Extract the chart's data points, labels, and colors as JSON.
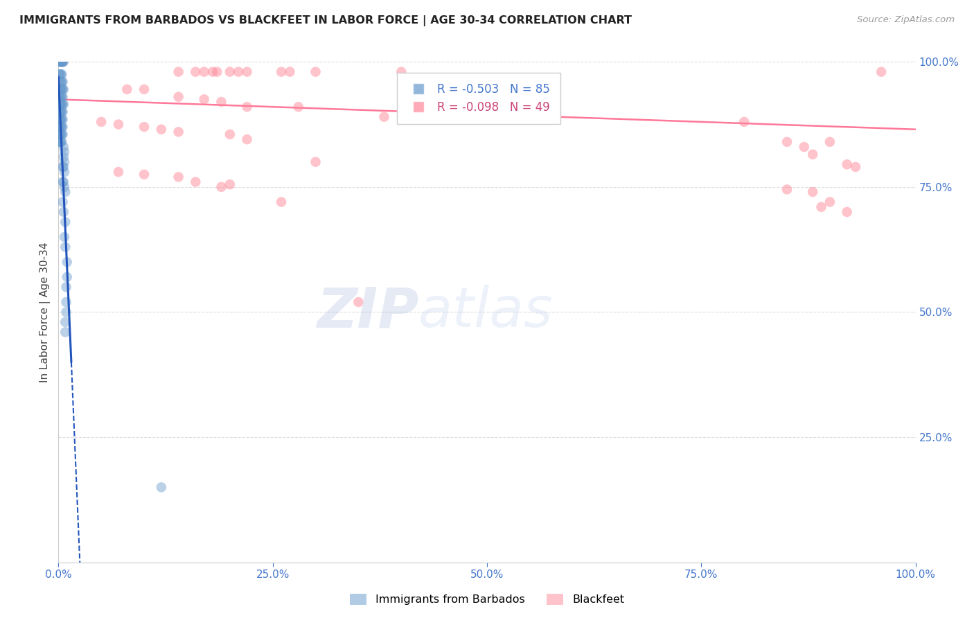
{
  "title": "IMMIGRANTS FROM BARBADOS VS BLACKFEET IN LABOR FORCE | AGE 30-34 CORRELATION CHART",
  "source": "Source: ZipAtlas.com",
  "ylabel": "In Labor Force | Age 30-34",
  "barbados_color": "#6699CC",
  "blackfeet_color": "#FF8899",
  "barbados_R": -0.503,
  "barbados_N": 85,
  "blackfeet_R": -0.098,
  "blackfeet_N": 49,
  "legend_label_barbados": "Immigrants from Barbados",
  "legend_label_blackfeet": "Blackfeet",
  "watermark_zip": "ZIP",
  "watermark_atlas": "atlas",
  "blue_line_solid": [
    [
      0.0,
      0.97
    ],
    [
      0.015,
      0.4
    ]
  ],
  "blue_line_dashed": [
    [
      0.015,
      0.4
    ],
    [
      0.025,
      0.0
    ]
  ],
  "pink_line": [
    [
      0.0,
      0.925
    ],
    [
      1.0,
      0.865
    ]
  ],
  "barbados_points": [
    [
      0.001,
      1.0
    ],
    [
      0.002,
      1.0
    ],
    [
      0.002,
      1.0
    ],
    [
      0.003,
      1.0
    ],
    [
      0.003,
      1.0
    ],
    [
      0.004,
      1.0
    ],
    [
      0.004,
      1.0
    ],
    [
      0.005,
      1.0
    ],
    [
      0.005,
      1.0
    ],
    [
      0.006,
      1.0
    ],
    [
      0.001,
      0.975
    ],
    [
      0.002,
      0.975
    ],
    [
      0.003,
      0.975
    ],
    [
      0.004,
      0.975
    ],
    [
      0.002,
      0.96
    ],
    [
      0.003,
      0.96
    ],
    [
      0.004,
      0.96
    ],
    [
      0.005,
      0.96
    ],
    [
      0.001,
      0.945
    ],
    [
      0.002,
      0.945
    ],
    [
      0.003,
      0.945
    ],
    [
      0.004,
      0.945
    ],
    [
      0.005,
      0.945
    ],
    [
      0.006,
      0.945
    ],
    [
      0.001,
      0.93
    ],
    [
      0.002,
      0.93
    ],
    [
      0.003,
      0.93
    ],
    [
      0.004,
      0.93
    ],
    [
      0.005,
      0.93
    ],
    [
      0.001,
      0.915
    ],
    [
      0.002,
      0.915
    ],
    [
      0.003,
      0.915
    ],
    [
      0.004,
      0.915
    ],
    [
      0.005,
      0.915
    ],
    [
      0.006,
      0.915
    ],
    [
      0.001,
      0.9
    ],
    [
      0.002,
      0.9
    ],
    [
      0.003,
      0.9
    ],
    [
      0.004,
      0.9
    ],
    [
      0.005,
      0.9
    ],
    [
      0.001,
      0.885
    ],
    [
      0.002,
      0.885
    ],
    [
      0.003,
      0.885
    ],
    [
      0.004,
      0.885
    ],
    [
      0.005,
      0.885
    ],
    [
      0.001,
      0.87
    ],
    [
      0.002,
      0.87
    ],
    [
      0.003,
      0.87
    ],
    [
      0.004,
      0.87
    ],
    [
      0.005,
      0.87
    ],
    [
      0.001,
      0.855
    ],
    [
      0.002,
      0.855
    ],
    [
      0.003,
      0.855
    ],
    [
      0.004,
      0.855
    ],
    [
      0.005,
      0.855
    ],
    [
      0.001,
      0.84
    ],
    [
      0.002,
      0.84
    ],
    [
      0.003,
      0.84
    ],
    [
      0.004,
      0.84
    ],
    [
      0.006,
      0.83
    ],
    [
      0.007,
      0.82
    ],
    [
      0.006,
      0.81
    ],
    [
      0.007,
      0.8
    ],
    [
      0.005,
      0.79
    ],
    [
      0.006,
      0.79
    ],
    [
      0.007,
      0.78
    ],
    [
      0.005,
      0.76
    ],
    [
      0.006,
      0.76
    ],
    [
      0.007,
      0.75
    ],
    [
      0.008,
      0.74
    ],
    [
      0.005,
      0.72
    ],
    [
      0.006,
      0.7
    ],
    [
      0.008,
      0.68
    ],
    [
      0.007,
      0.65
    ],
    [
      0.008,
      0.63
    ],
    [
      0.01,
      0.6
    ],
    [
      0.01,
      0.57
    ],
    [
      0.009,
      0.55
    ],
    [
      0.009,
      0.52
    ],
    [
      0.009,
      0.5
    ],
    [
      0.008,
      0.48
    ],
    [
      0.008,
      0.46
    ],
    [
      0.12,
      0.15
    ]
  ],
  "blackfeet_points": [
    [
      0.005,
      1.0
    ],
    [
      0.14,
      0.98
    ],
    [
      0.16,
      0.98
    ],
    [
      0.17,
      0.98
    ],
    [
      0.18,
      0.98
    ],
    [
      0.185,
      0.98
    ],
    [
      0.2,
      0.98
    ],
    [
      0.21,
      0.98
    ],
    [
      0.22,
      0.98
    ],
    [
      0.26,
      0.98
    ],
    [
      0.27,
      0.98
    ],
    [
      0.3,
      0.98
    ],
    [
      0.4,
      0.98
    ],
    [
      0.96,
      0.98
    ],
    [
      0.08,
      0.945
    ],
    [
      0.1,
      0.945
    ],
    [
      0.14,
      0.93
    ],
    [
      0.17,
      0.925
    ],
    [
      0.19,
      0.92
    ],
    [
      0.22,
      0.91
    ],
    [
      0.28,
      0.91
    ],
    [
      0.38,
      0.89
    ],
    [
      0.46,
      0.89
    ],
    [
      0.8,
      0.88
    ],
    [
      0.05,
      0.88
    ],
    [
      0.07,
      0.875
    ],
    [
      0.1,
      0.87
    ],
    [
      0.12,
      0.865
    ],
    [
      0.14,
      0.86
    ],
    [
      0.2,
      0.855
    ],
    [
      0.22,
      0.845
    ],
    [
      0.85,
      0.84
    ],
    [
      0.9,
      0.84
    ],
    [
      0.87,
      0.83
    ],
    [
      0.88,
      0.815
    ],
    [
      0.92,
      0.795
    ],
    [
      0.93,
      0.79
    ],
    [
      0.3,
      0.8
    ],
    [
      0.07,
      0.78
    ],
    [
      0.1,
      0.775
    ],
    [
      0.14,
      0.77
    ],
    [
      0.16,
      0.76
    ],
    [
      0.2,
      0.755
    ],
    [
      0.19,
      0.75
    ],
    [
      0.85,
      0.745
    ],
    [
      0.88,
      0.74
    ],
    [
      0.26,
      0.72
    ],
    [
      0.35,
      0.52
    ],
    [
      0.9,
      0.72
    ],
    [
      0.89,
      0.71
    ],
    [
      0.92,
      0.7
    ]
  ]
}
